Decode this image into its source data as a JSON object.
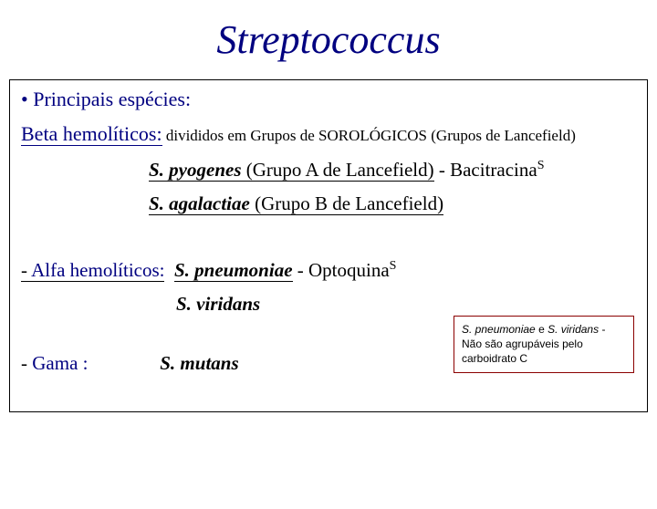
{
  "title": "Streptococcus",
  "species_header": "• Principais espécies:",
  "beta": {
    "label": "Beta hemolíticos:",
    "rest": " divididos em Grupos de SOROLÓGICOS (Grupos de Lancefield)"
  },
  "pyogenes": {
    "name": "S. pyogenes",
    "group": " (Grupo A de Lancefield)",
    "trail": "   - Bacitracina",
    "sup": "S"
  },
  "agalactiae": {
    "name": "S. agalactiae",
    "group": " (Grupo B de Lancefield)"
  },
  "alfa": {
    "dash": "- ",
    "label": "Alfa hemolíticos:",
    "pneu_name": "S. pneumoniae",
    "trail": "  - Optoquina",
    "sup": "S"
  },
  "viridans": {
    "name": "S.   viridans"
  },
  "gama": {
    "dash": "- ",
    "label": "Gama",
    "colon": " :",
    "name": "S. mutans"
  },
  "note": {
    "sp1": "S. pneumoniae",
    "mid": " e ",
    "sp2": "S. viridans",
    "rest": " - Não são agrupáveis pelo carboidrato C"
  },
  "colors": {
    "title": "#000080",
    "accent": "#000080",
    "note_border": "#8b0000",
    "text": "#000000",
    "background": "#ffffff"
  }
}
